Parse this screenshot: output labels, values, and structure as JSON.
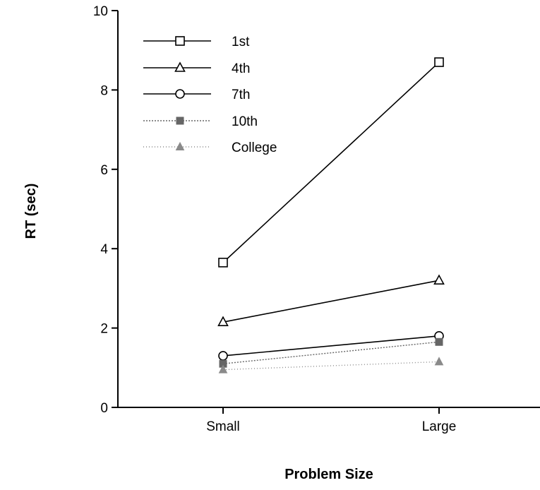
{
  "chart_data": {
    "type": "line",
    "categories": [
      "Small",
      "Large"
    ],
    "xlabel": "Problem Size",
    "ylabel": "RT  (sec)",
    "ylim": [
      0,
      10
    ],
    "yticks": [
      "0",
      "2",
      "4",
      "6",
      "8",
      "10"
    ],
    "grid": false,
    "legend_position": "top-left",
    "series": [
      {
        "name": "1st",
        "values": [
          3.65,
          8.7
        ],
        "marker": "square-open",
        "color": "#000000",
        "dash": ""
      },
      {
        "name": "4th",
        "values": [
          2.15,
          3.2
        ],
        "marker": "triangle-open",
        "color": "#000000",
        "dash": ""
      },
      {
        "name": "7th",
        "values": [
          1.3,
          1.8
        ],
        "marker": "circle-open",
        "color": "#000000",
        "dash": ""
      },
      {
        "name": "10th",
        "values": [
          1.1,
          1.65
        ],
        "marker": "square-filled",
        "color": "#666666",
        "dash": "2,2"
      },
      {
        "name": "College",
        "values": [
          0.95,
          1.15
        ],
        "marker": "triangle-filled",
        "color": "#8a8a8a",
        "dash": "1,3"
      }
    ]
  }
}
